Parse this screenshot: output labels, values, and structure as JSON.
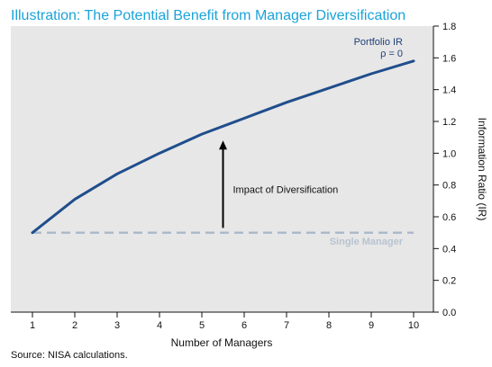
{
  "chart_data": {
    "type": "line",
    "title": "Illustration: The Potential Benefit from Manager Diversification",
    "xlabel": "Number of Managers",
    "ylabel": "Information Ratio (IR)",
    "x": [
      1,
      2,
      3,
      4,
      5,
      6,
      7,
      8,
      9,
      10
    ],
    "xticks": [
      "1",
      "2",
      "3",
      "4",
      "5",
      "6",
      "7",
      "8",
      "9",
      "10"
    ],
    "ylim": [
      0,
      1.8
    ],
    "yticks": [
      "0.0",
      "0.2",
      "0.4",
      "0.6",
      "0.8",
      "1.0",
      "1.2",
      "1.4",
      "1.6",
      "1.8"
    ],
    "grid": false,
    "series": [
      {
        "name": "Portfolio IR\nρ = 0",
        "values": [
          0.5,
          0.71,
          0.87,
          1.0,
          1.12,
          1.22,
          1.32,
          1.41,
          1.5,
          1.58
        ],
        "color": "#1f4e8c",
        "style": "solid"
      },
      {
        "name": "Single Manager",
        "values": [
          0.5,
          0.5,
          0.5,
          0.5,
          0.5,
          0.5,
          0.5,
          0.5,
          0.5,
          0.5
        ],
        "color": "#a9b8ca",
        "style": "dashed"
      }
    ],
    "annotations": [
      {
        "text": "Impact of Diversification",
        "x": 5.5,
        "y_from": 0.53,
        "y_to": 1.08
      }
    ],
    "plot_background": "#e7e7e7",
    "legend_placement": "top-right",
    "source_note": "Source: NISA calculations.",
    "colors": {
      "title": "#1aa3d9",
      "annotation_arrow": "#000000",
      "axis": "#111111"
    }
  }
}
